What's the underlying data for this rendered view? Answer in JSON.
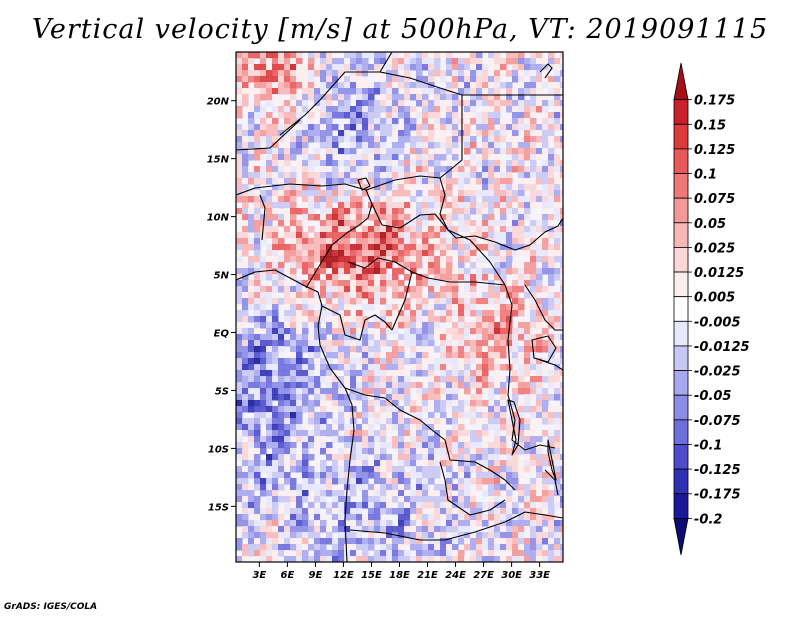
{
  "title": "Vertical velocity [m/s] at 500hPa, VT: 2019091115",
  "credit": "GrADS: IGES/COLA",
  "lat_ticks": [
    {
      "lat": 20,
      "label": "20N"
    },
    {
      "lat": 15,
      "label": "15N"
    },
    {
      "lat": 10,
      "label": "10N"
    },
    {
      "lat": 5,
      "label": "5N"
    },
    {
      "lat": 0,
      "label": "EQ"
    },
    {
      "lat": -5,
      "label": "5S"
    },
    {
      "lat": -10,
      "label": "10S"
    },
    {
      "lat": -15,
      "label": "15S"
    }
  ],
  "lon_ticks": [
    {
      "lon": 3,
      "label": "3E"
    },
    {
      "lon": 6,
      "label": "6E"
    },
    {
      "lon": 9,
      "label": "9E"
    },
    {
      "lon": 12,
      "label": "12E"
    },
    {
      "lon": 15,
      "label": "15E"
    },
    {
      "lon": 18,
      "label": "18E"
    },
    {
      "lon": 21,
      "label": "21E"
    },
    {
      "lon": 24,
      "label": "24E"
    },
    {
      "lon": 27,
      "label": "27E"
    },
    {
      "lon": 30,
      "label": "30E"
    },
    {
      "lon": 33,
      "label": "33E"
    }
  ],
  "domain": {
    "lon_min": 0.5,
    "lon_max": 35.5,
    "lat_min": -19.8,
    "lat_max": 24.2
  },
  "colorbar": {
    "levels": [
      "0.175",
      "0.15",
      "0.125",
      "0.1",
      "0.075",
      "0.05",
      "0.025",
      "0.0125",
      "0.005",
      "-0.005",
      "-0.0125",
      "-0.025",
      "-0.05",
      "-0.075",
      "-0.1",
      "-0.125",
      "-0.175",
      "-0.2"
    ],
    "colors": [
      "#a50f15",
      "#c8212a",
      "#dc3c3c",
      "#e85a5a",
      "#f07878",
      "#f49898",
      "#f8b8b8",
      "#fbd6d6",
      "#fdeeee",
      "#ffffff",
      "#e8e8fb",
      "#c8c8f4",
      "#a8a8ee",
      "#8c8ce6",
      "#6e6edc",
      "#4e4ecc",
      "#3030b4",
      "#1a1a98",
      "#0d0d78"
    ]
  }
}
